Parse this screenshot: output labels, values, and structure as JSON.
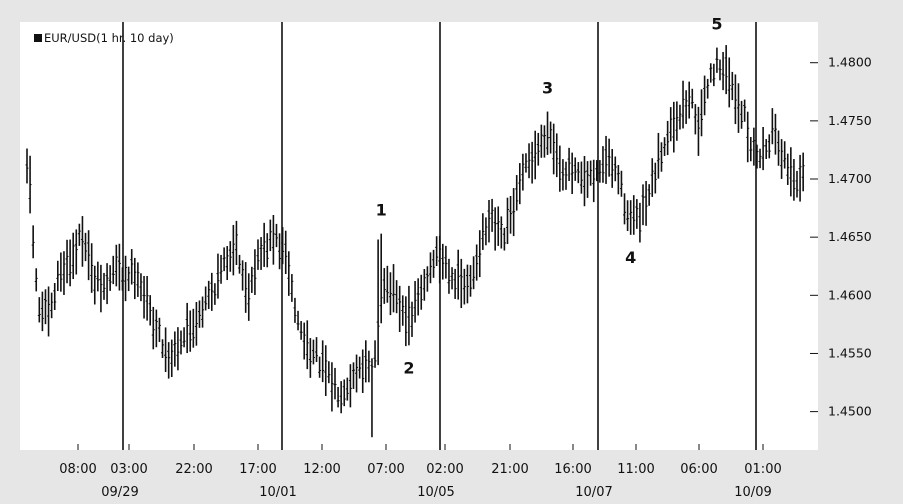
{
  "chart_data": {
    "type": "bar",
    "subtype": "ohlc",
    "title": "EUR/USD(1 hr.  10 day)",
    "xlabel": "",
    "ylabel": "",
    "ylim": [
      1.4467,
      1.4835
    ],
    "yticks": [
      1.45,
      1.455,
      1.46,
      1.465,
      1.47,
      1.475,
      1.48
    ],
    "ytick_labels": [
      "1.4500",
      "1.4550",
      "1.4600",
      "1.4650",
      "1.4700",
      "1.4750",
      "1.4800"
    ],
    "xtick_labels": [
      "08:00",
      "03:00",
      "22:00",
      "17:00",
      "12:00",
      "07:00",
      "02:00",
      "21:00",
      "16:00",
      "11:00",
      "06:00",
      "01:00"
    ],
    "date_labels": [
      "09/29",
      "10/01",
      "10/05",
      "10/07",
      "10/09"
    ],
    "grid": false,
    "colors": {
      "bars": "#111111",
      "plot_background": "#ffffff",
      "page_background": "#e6e6e6",
      "session_lines": "#111111"
    },
    "wave_labels": [
      {
        "label": "1",
        "position": "above",
        "price": 1.4665,
        "bar_index": 115
      },
      {
        "label": "2",
        "position": "below",
        "price": 1.4545,
        "bar_index": 124
      },
      {
        "label": "3",
        "position": "above",
        "price": 1.477,
        "bar_index": 169
      },
      {
        "label": "4",
        "position": "below",
        "price": 1.464,
        "bar_index": 196
      },
      {
        "label": "5",
        "position": "above",
        "price": 1.4825,
        "bar_index": 224
      }
    ],
    "close_path": [
      [
        0,
        1.4705
      ],
      [
        3,
        1.459
      ],
      [
        7,
        1.458
      ],
      [
        10,
        1.462
      ],
      [
        14,
        1.4632
      ],
      [
        18,
        1.4655
      ],
      [
        21,
        1.4612
      ],
      [
        25,
        1.4605
      ],
      [
        28,
        1.4625
      ],
      [
        31,
        1.4615
      ],
      [
        35,
        1.4622
      ],
      [
        39,
        1.4588
      ],
      [
        42,
        1.4568
      ],
      [
        46,
        1.4545
      ],
      [
        49,
        1.4562
      ],
      [
        53,
        1.4572
      ],
      [
        56,
        1.4588
      ],
      [
        60,
        1.4605
      ],
      [
        63,
        1.4622
      ],
      [
        67,
        1.4648
      ],
      [
        71,
        1.46
      ],
      [
        74,
        1.463
      ],
      [
        77,
        1.4642
      ],
      [
        80,
        1.465
      ],
      [
        84,
        1.463
      ],
      [
        87,
        1.458
      ],
      [
        90,
        1.4558
      ],
      [
        94,
        1.4545
      ],
      [
        98,
        1.4525
      ],
      [
        101,
        1.4518
      ],
      [
        105,
        1.4528
      ],
      [
        108,
        1.4542
      ],
      [
        112,
        1.4532
      ],
      [
        115,
        1.4615
      ],
      [
        118,
        1.4602
      ],
      [
        121,
        1.4585
      ],
      [
        124,
        1.458
      ],
      [
        128,
        1.4605
      ],
      [
        132,
        1.4635
      ],
      [
        135,
        1.463
      ],
      [
        139,
        1.4612
      ],
      [
        143,
        1.4605
      ],
      [
        146,
        1.4638
      ],
      [
        150,
        1.4665
      ],
      [
        154,
        1.4645
      ],
      [
        158,
        1.468
      ],
      [
        162,
        1.4712
      ],
      [
        166,
        1.4728
      ],
      [
        169,
        1.474
      ],
      [
        173,
        1.471
      ],
      [
        177,
        1.4705
      ],
      [
        180,
        1.4695
      ],
      [
        184,
        1.47
      ],
      [
        187,
        1.4718
      ],
      [
        191,
        1.4705
      ],
      [
        194,
        1.4675
      ],
      [
        198,
        1.4662
      ],
      [
        201,
        1.468
      ],
      [
        205,
        1.4718
      ],
      [
        208,
        1.4745
      ],
      [
        212,
        1.4758
      ],
      [
        215,
        1.477
      ],
      [
        218,
        1.4742
      ],
      [
        221,
        1.479
      ],
      [
        225,
        1.48
      ],
      [
        228,
        1.478
      ],
      [
        232,
        1.4758
      ],
      [
        235,
        1.4722
      ],
      [
        239,
        1.4725
      ],
      [
        242,
        1.4745
      ],
      [
        245,
        1.4718
      ],
      [
        249,
        1.47
      ],
      [
        252,
        1.47
      ]
    ]
  }
}
